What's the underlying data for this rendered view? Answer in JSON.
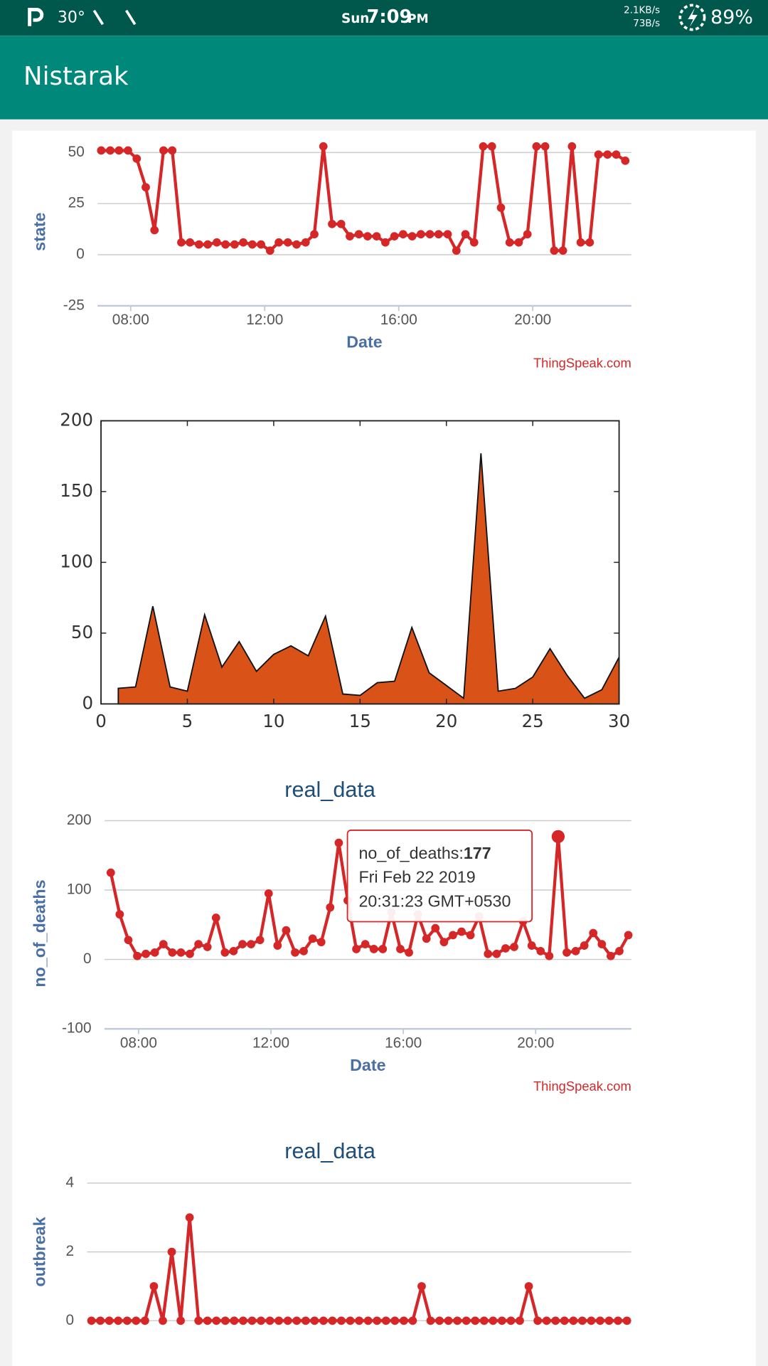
{
  "status_bar": {
    "temperature": "30°",
    "day": "Sun",
    "time": "7:09",
    "meridiem": "PM",
    "upload": "2.1KB/s",
    "download": "73B/s",
    "battery": "89%"
  },
  "app_bar": {
    "title": "Nistarak"
  },
  "chart_data": [
    {
      "type": "line",
      "y_label": "state",
      "x_label": "Date",
      "credit": "ThingSpeak.com",
      "color": "#d62728",
      "grid": true,
      "x": [
        7.12,
        7.39,
        7.65,
        7.92,
        8.18,
        8.45,
        8.71,
        8.98,
        9.24,
        9.51,
        9.77,
        10.04,
        10.3,
        10.57,
        10.83,
        11.1,
        11.36,
        11.63,
        11.89,
        12.16,
        12.42,
        12.69,
        12.95,
        13.22,
        13.48,
        13.75,
        14.01,
        14.28,
        14.54,
        14.81,
        15.07,
        15.34,
        15.6,
        15.87,
        16.13,
        16.4,
        16.66,
        16.93,
        17.19,
        17.46,
        17.72,
        17.99,
        18.25,
        18.52,
        18.78,
        19.05,
        19.31,
        19.58,
        19.84,
        20.11,
        20.37,
        20.64,
        20.9,
        21.17,
        21.43,
        21.7,
        21.96,
        22.23,
        22.49,
        22.76
      ],
      "values": [
        51,
        51,
        51,
        51,
        47,
        33,
        12,
        51,
        51,
        6,
        6,
        5,
        5,
        6,
        5,
        5,
        6,
        5,
        5,
        2,
        6,
        6,
        5,
        6,
        10,
        53,
        15,
        15,
        9,
        10,
        9,
        9,
        6,
        9,
        10,
        9,
        10,
        10,
        10,
        10,
        2,
        10,
        6,
        53,
        53,
        23,
        6,
        6,
        10,
        53,
        53,
        2,
        2,
        53,
        6,
        6,
        49,
        49,
        49,
        46
      ],
      "xlim": [
        7.01,
        22.94
      ],
      "ylim": [
        -25,
        56
      ],
      "xticks": [
        {
          "value": 8,
          "label": "08:00"
        },
        {
          "value": 12,
          "label": "12:00"
        },
        {
          "value": 16,
          "label": "16:00"
        },
        {
          "value": 20,
          "label": "20:00"
        }
      ],
      "yticks": [
        -25,
        0,
        25,
        50
      ]
    },
    {
      "type": "area",
      "color": "#d95319",
      "x": [
        1,
        2,
        3,
        4,
        5,
        6,
        7,
        8,
        9,
        10,
        11,
        12,
        13,
        14,
        15,
        16,
        17,
        18,
        19,
        20,
        21,
        22,
        23,
        24,
        25,
        26,
        27,
        28,
        29,
        30
      ],
      "values": [
        11,
        12,
        69,
        12,
        9,
        63,
        26,
        44,
        23,
        35,
        41,
        34,
        62,
        7,
        6,
        15,
        16,
        54,
        22,
        13,
        4,
        177,
        9,
        11,
        19,
        39,
        20,
        4,
        10,
        33
      ],
      "xlim": [
        0,
        30
      ],
      "ylim": [
        0,
        200
      ],
      "xticks": [
        0,
        5,
        10,
        15,
        20,
        25,
        30
      ],
      "yticks": [
        0,
        50,
        100,
        150,
        200
      ]
    },
    {
      "type": "line",
      "title": "real_data",
      "y_label": "no_of_deaths",
      "x_label": "Date",
      "credit": "ThingSpeak.com",
      "color": "#d62728",
      "grid": true,
      "x": [
        7.16,
        7.43,
        7.69,
        7.96,
        8.22,
        8.49,
        8.75,
        9.02,
        9.28,
        9.55,
        9.81,
        10.08,
        10.34,
        10.61,
        10.87,
        11.14,
        11.4,
        11.67,
        11.93,
        12.2,
        12.46,
        12.73,
        12.99,
        13.26,
        13.52,
        13.79,
        14.05,
        14.32,
        14.58,
        14.85,
        15.11,
        15.38,
        15.64,
        15.91,
        16.17,
        16.44,
        16.7,
        16.97,
        17.23,
        17.5,
        17.76,
        18.03,
        18.29,
        18.56,
        18.82,
        19.09,
        19.35,
        19.62,
        19.88,
        20.15,
        20.41,
        20.68,
        20.94,
        21.21,
        21.47,
        21.74,
        22,
        22.27,
        22.53,
        22.8
      ],
      "values": [
        125,
        65,
        28,
        5,
        8,
        10,
        22,
        10,
        10,
        8,
        22,
        18,
        60,
        10,
        12,
        22,
        22,
        28,
        95,
        20,
        42,
        10,
        12,
        30,
        25,
        75,
        168,
        85,
        15,
        22,
        15,
        15,
        68,
        15,
        10,
        65,
        30,
        45,
        25,
        35,
        40,
        35,
        62,
        8,
        8,
        16,
        18,
        55,
        20,
        12,
        5,
        177,
        10,
        12,
        20,
        38,
        22,
        5,
        12,
        35
      ],
      "xlim": [
        6.97,
        22.89
      ],
      "ylim": [
        -100,
        200
      ],
      "xticks": [
        {
          "value": 8,
          "label": "08:00"
        },
        {
          "value": 12,
          "label": "12:00"
        },
        {
          "value": 16,
          "label": "16:00"
        },
        {
          "value": 20,
          "label": "20:00"
        }
      ],
      "yticks": [
        -100,
        0,
        100,
        200
      ],
      "tooltip": {
        "label": "no_of_deaths:",
        "date": "Fri Feb 22 2019",
        "time": "20:31:23 GMT+0530"
      }
    },
    {
      "type": "line",
      "title": "real_data",
      "y_label": "outbreak",
      "color": "#d62728",
      "grid": true,
      "values": [
        0,
        0,
        0,
        0,
        0,
        0,
        0,
        1,
        0,
        2,
        0,
        3,
        0,
        0,
        0,
        0,
        0,
        0,
        0,
        0,
        0,
        0,
        0,
        0,
        0,
        0,
        0,
        0,
        0,
        0,
        0,
        0,
        0,
        0,
        0,
        0,
        0,
        1,
        0,
        0,
        0,
        0,
        0,
        0,
        0,
        0,
        0,
        0,
        0,
        1,
        0,
        0,
        0,
        0,
        0,
        0,
        0,
        0,
        0,
        0,
        0
      ],
      "ylim": [
        0,
        4
      ],
      "yticks": [
        0,
        2,
        4
      ]
    }
  ]
}
